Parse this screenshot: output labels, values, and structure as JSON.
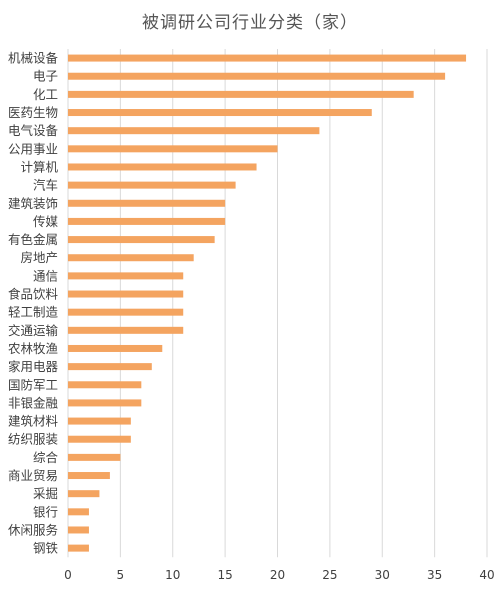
{
  "chart_data": {
    "type": "bar",
    "orientation": "horizontal",
    "title": "被调研公司行业分类（家）",
    "categories": [
      "机械设备",
      "电子",
      "化工",
      "医药生物",
      "电气设备",
      "公用事业",
      "计算机",
      "汽车",
      "建筑装饰",
      "传媒",
      "有色金属",
      "房地产",
      "通信",
      "食品饮料",
      "轻工制造",
      "交通运输",
      "农林牧渔",
      "家用电器",
      "国防军工",
      "非银金融",
      "建筑材料",
      "纺织服装",
      "综合",
      "商业贸易",
      "采掘",
      "银行",
      "休闲服务",
      "钢铁"
    ],
    "values": [
      38,
      36,
      33,
      29,
      24,
      20,
      18,
      16,
      15,
      15,
      14,
      12,
      11,
      11,
      11,
      11,
      9,
      8,
      7,
      7,
      6,
      6,
      5,
      4,
      3,
      2,
      2,
      2
    ],
    "xlim": [
      0,
      40
    ],
    "xticks": [
      "0",
      "5",
      "10",
      "15",
      "20",
      "25",
      "30",
      "35",
      "40"
    ],
    "grid": true,
    "legend": "none",
    "bar_color": "#F4A460",
    "grid_color": "#D9D9D9",
    "label_color": "#404040"
  }
}
